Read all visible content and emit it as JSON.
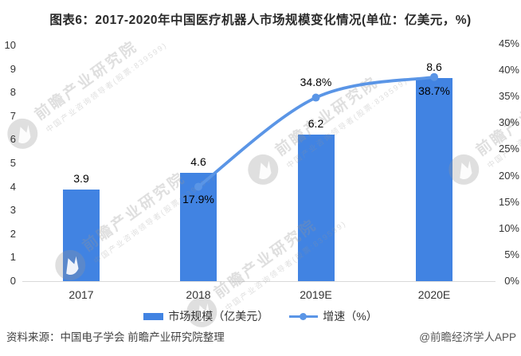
{
  "title": "图表6：2017-2020年中国医疗机器人市场规模变化情况(单位：亿美元，%)",
  "chart_data": {
    "type": "combo-bar-line",
    "categories": [
      "2017",
      "2018",
      "2019E",
      "2020E"
    ],
    "series": [
      {
        "name": "市场规模（亿美元）",
        "type": "bar",
        "axis": "left",
        "color": "#4183e2",
        "values": [
          3.9,
          4.6,
          6.2,
          8.6
        ]
      },
      {
        "name": "增速（%）",
        "type": "line",
        "axis": "right",
        "color": "#5a95e6",
        "values": [
          null,
          17.9,
          34.8,
          38.7
        ]
      }
    ],
    "data_labels": {
      "bar": [
        "3.9",
        "4.6",
        "6.2",
        "8.6"
      ],
      "line": [
        null,
        "17.9%",
        "34.8%",
        "38.7%"
      ]
    },
    "left_axis": {
      "min": 0,
      "max": 10,
      "step": 1,
      "ticks": [
        "0",
        "1",
        "2",
        "3",
        "4",
        "5",
        "6",
        "7",
        "8",
        "9",
        "10"
      ]
    },
    "right_axis": {
      "min": 0,
      "max": 45,
      "step": 5,
      "ticks": [
        "0%",
        "5%",
        "10%",
        "15%",
        "20%",
        "25%",
        "30%",
        "35%",
        "40%",
        "45%"
      ]
    },
    "grid": false,
    "legend_position": "bottom"
  },
  "footer": {
    "source": "资料来源：中国电子学会 前瞻产业研究院整理",
    "credit": "@前瞻经济学人APP"
  },
  "watermark": {
    "brand": "前瞻产业研究院",
    "tagline": "中国产业咨询领导者(股票:839599)"
  },
  "colors": {
    "bar": "#4183e2",
    "line": "#5a95e6",
    "title_text": "#2a2a2a",
    "axis_text": "#333333",
    "label_text": "#000000",
    "watermark": "#e0e0e0",
    "baseline": "#d9d9d9"
  }
}
